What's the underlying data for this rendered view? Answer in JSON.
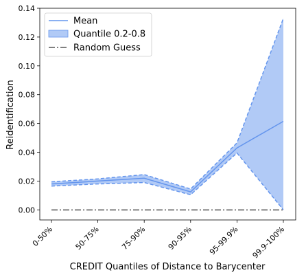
{
  "chart_data": {
    "type": "line",
    "xlabel": "CREDIT Quantiles of Distance to Barycenter",
    "ylabel": "Reidentification",
    "categories": [
      "0-50%",
      "50-75%",
      "75-90%",
      "90-95%",
      "95-99.9%",
      "99.9-100%"
    ],
    "ylim": [
      -0.007,
      0.14
    ],
    "yticks": [
      0.0,
      0.02,
      0.04,
      0.06,
      0.08,
      0.1,
      0.12,
      0.14
    ],
    "ytick_labels": [
      "0.00",
      "0.02",
      "0.04",
      "0.06",
      "0.08",
      "0.10",
      "0.12",
      "0.14"
    ],
    "legend_position": "upper-left",
    "grid": false,
    "series": [
      {
        "name": "Mean",
        "kind": "line",
        "color": "#6495ED",
        "values": [
          0.018,
          0.02,
          0.022,
          0.0125,
          0.043,
          0.0615
        ]
      },
      {
        "name": "Quantile 0.2-0.8",
        "kind": "band",
        "color": "#6495ED",
        "lower": [
          0.0165,
          0.018,
          0.019,
          0.0105,
          0.0395,
          0.0
        ],
        "upper": [
          0.0195,
          0.0215,
          0.0245,
          0.0145,
          0.0465,
          0.133
        ]
      },
      {
        "name": "Random Guess",
        "kind": "line",
        "style": "dashdot",
        "color": "#808080",
        "values": [
          0.0,
          0.0,
          0.0,
          0.0,
          0.0,
          0.0
        ]
      }
    ]
  }
}
